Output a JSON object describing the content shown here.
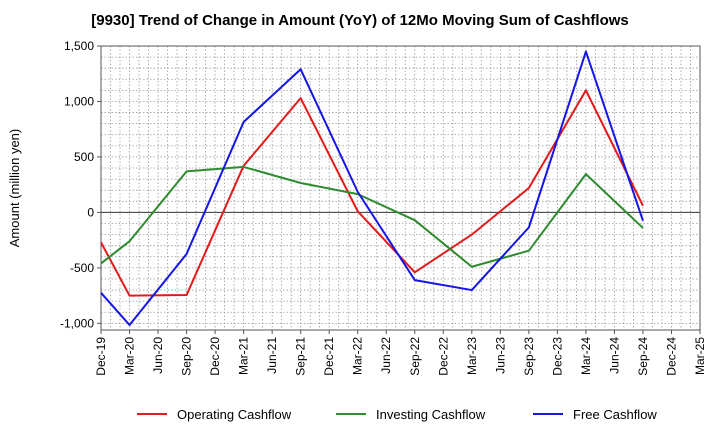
{
  "chart_data": {
    "type": "line",
    "title": "[9930]  Trend of Change in Amount (YoY) of 12Mo Moving Sum of Cashflows",
    "xlabel": "",
    "ylabel": "Amount (million yen)",
    "ylim": [
      -1060,
      1500
    ],
    "yticks": [
      -1000,
      -500,
      0,
      500,
      1000,
      1500
    ],
    "ytick_labels": [
      "-1,000",
      "-500",
      "0",
      "500",
      "1,000",
      "1,500"
    ],
    "categories": [
      "Dec-19",
      "Mar-20",
      "Jun-20",
      "Sep-20",
      "Dec-20",
      "Mar-21",
      "Jun-21",
      "Sep-21",
      "Dec-21",
      "Mar-22",
      "Jun-22",
      "Sep-22",
      "Dec-22",
      "Mar-23",
      "Jun-23",
      "Sep-23",
      "Dec-23",
      "Mar-24",
      "Jun-24",
      "Sep-24",
      "Dec-24",
      "Mar-25"
    ],
    "grid": true,
    "legend_position": "bottom",
    "series": [
      {
        "name": "Operating Cashflow",
        "color": "#e31a1c",
        "values": [
          -270,
          -750,
          null,
          -745,
          null,
          420,
          null,
          1030,
          null,
          10,
          null,
          -540,
          null,
          -200,
          null,
          220,
          null,
          1100,
          null,
          60,
          null,
          null
        ]
      },
      {
        "name": "Investing Cashflow",
        "color": "#2e8b2e",
        "values": [
          -460,
          -260,
          null,
          370,
          null,
          410,
          null,
          265,
          null,
          165,
          null,
          -70,
          null,
          -490,
          null,
          -345,
          null,
          345,
          null,
          -140,
          null,
          null
        ]
      },
      {
        "name": "Free Cashflow",
        "color": "#1515e6",
        "values": [
          -725,
          -1015,
          null,
          -375,
          null,
          815,
          null,
          1290,
          null,
          185,
          null,
          -610,
          null,
          -700,
          null,
          -135,
          null,
          1450,
          null,
          -75,
          null,
          null
        ]
      }
    ]
  }
}
